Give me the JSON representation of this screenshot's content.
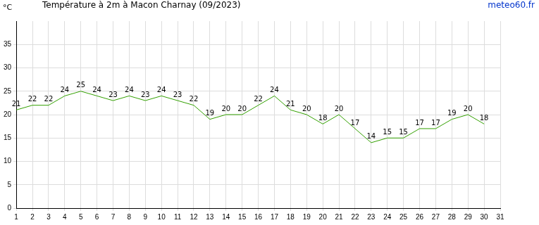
{
  "chart_data": {
    "type": "line",
    "title": "Température à 2m à Macon Charnay (09/2023)",
    "y_label": "°C",
    "source": "meteo60.fr",
    "categories": [
      1,
      2,
      3,
      4,
      5,
      6,
      7,
      8,
      9,
      10,
      11,
      12,
      13,
      14,
      15,
      16,
      17,
      18,
      19,
      20,
      21,
      22,
      23,
      24,
      25,
      26,
      27,
      28,
      29,
      30,
      31
    ],
    "values": [
      21,
      22,
      22,
      24,
      25,
      24,
      23,
      24,
      23,
      24,
      23,
      22,
      19,
      20,
      20,
      22,
      24,
      21,
      20,
      18,
      20,
      17,
      14,
      15,
      15,
      17,
      17,
      19,
      20,
      18,
      null
    ],
    "color": "#33a000",
    "ylim": [
      0,
      40
    ],
    "yticks": [
      0,
      5,
      10,
      15,
      20,
      25,
      30,
      35
    ],
    "grid": true,
    "data_labels": true
  }
}
